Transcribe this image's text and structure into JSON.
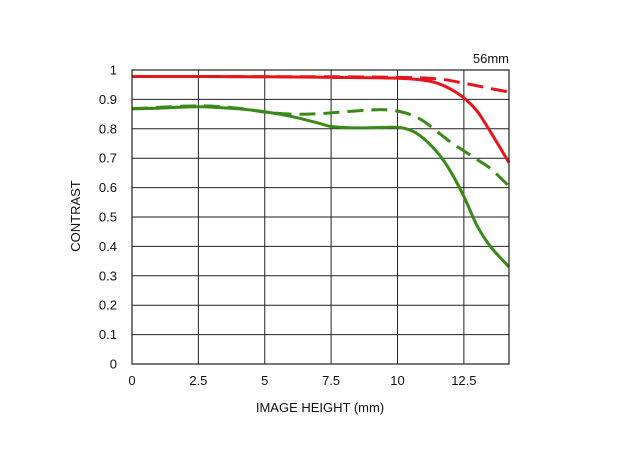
{
  "chart_data": {
    "type": "line",
    "annotation": "56mm",
    "xlabel": "IMAGE HEIGHT (mm)",
    "ylabel": "CONTRAST",
    "xlim": [
      0,
      14.2
    ],
    "ylim": [
      0,
      1
    ],
    "xticks": [
      0,
      2.5,
      5,
      7.5,
      10,
      12.5
    ],
    "xtick_labels": [
      "0",
      "2.5",
      "5",
      "7.5",
      "10",
      "12.5"
    ],
    "yticks": [
      0,
      0.1,
      0.2,
      0.3,
      0.4,
      0.5,
      0.6,
      0.7,
      0.8,
      0.9,
      1
    ],
    "ytick_labels": [
      "0",
      "0.1",
      "0.2",
      "0.3",
      "0.4",
      "0.5",
      "0.6",
      "0.7",
      "0.8",
      "0.9",
      "1"
    ],
    "grid": true,
    "legend": "none",
    "series": [
      {
        "color": "#e8141c",
        "dash": "solid",
        "points": [
          [
            0,
            0.978
          ],
          [
            2.5,
            0.978
          ],
          [
            5,
            0.977
          ],
          [
            7.5,
            0.975
          ],
          [
            10,
            0.972
          ],
          [
            11,
            0.965
          ],
          [
            11.5,
            0.955
          ],
          [
            12,
            0.935
          ],
          [
            12.5,
            0.905
          ],
          [
            13,
            0.86
          ],
          [
            13.5,
            0.79
          ],
          [
            14.2,
            0.685
          ]
        ]
      },
      {
        "color": "#e8141c",
        "dash": "dashed",
        "points": [
          [
            0,
            0.978
          ],
          [
            2.5,
            0.978
          ],
          [
            5,
            0.977
          ],
          [
            7.5,
            0.977
          ],
          [
            10,
            0.975
          ],
          [
            11.5,
            0.97
          ],
          [
            12.5,
            0.955
          ],
          [
            13.5,
            0.937
          ],
          [
            14.2,
            0.925
          ]
        ]
      },
      {
        "color": "#3a8a1a",
        "dash": "solid",
        "points": [
          [
            0,
            0.868
          ],
          [
            1,
            0.87
          ],
          [
            2.5,
            0.875
          ],
          [
            4,
            0.868
          ],
          [
            5,
            0.858
          ],
          [
            6,
            0.842
          ],
          [
            7,
            0.82
          ],
          [
            7.5,
            0.808
          ],
          [
            8.5,
            0.803
          ],
          [
            9.5,
            0.805
          ],
          [
            10.2,
            0.803
          ],
          [
            10.8,
            0.78
          ],
          [
            11.5,
            0.72
          ],
          [
            12,
            0.655
          ],
          [
            12.5,
            0.57
          ],
          [
            13,
            0.47
          ],
          [
            13.5,
            0.4
          ],
          [
            14.2,
            0.33
          ]
        ]
      },
      {
        "color": "#3a8a1a",
        "dash": "dashed",
        "points": [
          [
            0,
            0.868
          ],
          [
            2.5,
            0.878
          ],
          [
            4,
            0.87
          ],
          [
            5,
            0.857
          ],
          [
            6,
            0.85
          ],
          [
            7,
            0.851
          ],
          [
            8,
            0.858
          ],
          [
            9,
            0.864
          ],
          [
            9.5,
            0.865
          ],
          [
            10,
            0.86
          ],
          [
            10.5,
            0.848
          ],
          [
            11,
            0.825
          ],
          [
            11.5,
            0.79
          ],
          [
            12,
            0.755
          ],
          [
            12.5,
            0.725
          ],
          [
            13,
            0.695
          ],
          [
            13.5,
            0.665
          ],
          [
            14.2,
            0.605
          ]
        ]
      }
    ]
  }
}
